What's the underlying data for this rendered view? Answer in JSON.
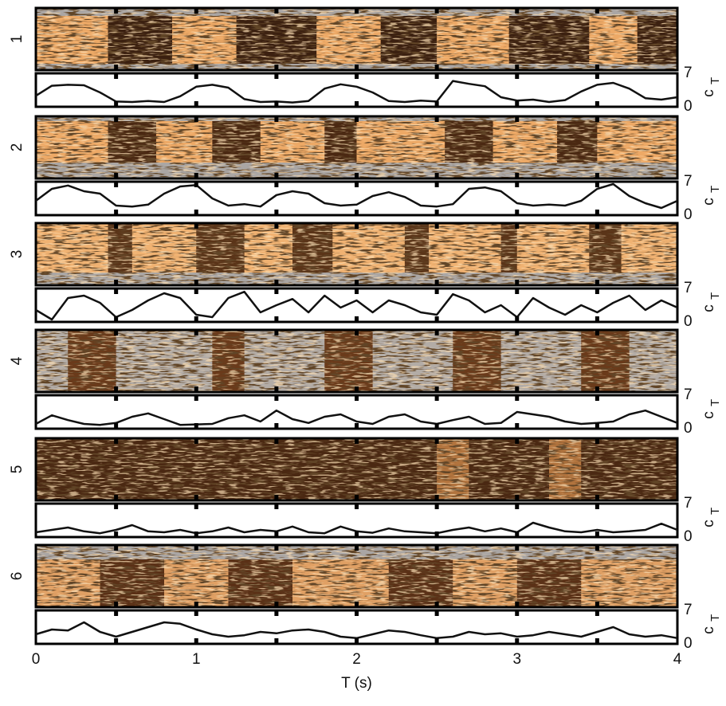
{
  "chart_data": [
    {
      "type": "line",
      "label": "1",
      "xlim": [
        0,
        4
      ],
      "ylim": [
        0,
        7
      ],
      "yticks": [
        0,
        7
      ],
      "ylabel": "c",
      "ylabel_sub": "T",
      "minor_xticks": [
        0.5,
        1,
        1.5,
        2,
        2.5,
        3,
        3.5
      ],
      "x": [
        0,
        0.1,
        0.2,
        0.3,
        0.4,
        0.5,
        0.6,
        0.7,
        0.8,
        0.9,
        1,
        1.1,
        1.2,
        1.3,
        1.4,
        1.5,
        1.6,
        1.7,
        1.8,
        1.9,
        2,
        2.1,
        2.2,
        2.3,
        2.4,
        2.5,
        2.6,
        2.7,
        2.8,
        2.9,
        3,
        3.1,
        3.2,
        3.3,
        3.4,
        3.5,
        3.6,
        3.7,
        3.8,
        3.9,
        4
      ],
      "values": [
        2.3,
        4.4,
        4.6,
        4.5,
        3.0,
        1.1,
        1.0,
        1.2,
        1.0,
        2.2,
        4.2,
        4.6,
        4.0,
        1.6,
        1.0,
        1.1,
        0.9,
        1.2,
        3.8,
        4.7,
        4.2,
        3.0,
        1.2,
        1.0,
        1.3,
        1.1,
        5.4,
        4.8,
        4.3,
        2.0,
        1.3,
        1.5,
        1.0,
        1.4,
        3.2,
        4.6,
        5.0,
        3.8,
        1.8,
        1.5,
        2.0
      ]
    },
    {
      "type": "line",
      "label": "2",
      "xlim": [
        0,
        4
      ],
      "ylim": [
        0,
        7
      ],
      "yticks": [
        0,
        7
      ],
      "ylabel": "c",
      "ylabel_sub": "T",
      "minor_xticks": [
        0.5,
        1,
        1.5,
        2,
        2.5,
        3,
        3.5
      ],
      "x": [
        0,
        0.1,
        0.2,
        0.3,
        0.4,
        0.5,
        0.6,
        0.7,
        0.8,
        0.9,
        1,
        1.1,
        1.2,
        1.3,
        1.4,
        1.5,
        1.6,
        1.7,
        1.8,
        1.9,
        2,
        2.1,
        2.2,
        2.3,
        2.4,
        2.5,
        2.6,
        2.7,
        2.8,
        2.9,
        3,
        3.1,
        3.2,
        3.3,
        3.4,
        3.5,
        3.6,
        3.7,
        3.8,
        3.9,
        4
      ],
      "values": [
        3.0,
        5.5,
        6.2,
        5.0,
        4.5,
        2.0,
        1.8,
        2.2,
        4.5,
        6.0,
        6.3,
        3.5,
        2.0,
        2.3,
        1.8,
        4.2,
        5.0,
        4.5,
        2.5,
        2.0,
        2.2,
        4.0,
        4.8,
        3.8,
        2.0,
        1.8,
        2.3,
        5.5,
        5.8,
        5.0,
        2.5,
        2.0,
        2.2,
        2.0,
        3.0,
        5.5,
        6.5,
        4.0,
        2.5,
        1.5,
        3.0
      ]
    },
    {
      "type": "line",
      "label": "3",
      "xlim": [
        0,
        4
      ],
      "ylim": [
        0,
        7
      ],
      "yticks": [
        0,
        7
      ],
      "ylabel": "c",
      "ylabel_sub": "T",
      "minor_xticks": [
        0.5,
        1,
        1.5,
        2,
        2.5,
        3,
        3.5
      ],
      "x": [
        0,
        0.1,
        0.2,
        0.3,
        0.4,
        0.5,
        0.6,
        0.7,
        0.8,
        0.9,
        1,
        1.1,
        1.2,
        1.3,
        1.4,
        1.5,
        1.6,
        1.7,
        1.8,
        1.9,
        2,
        2.1,
        2.2,
        2.3,
        2.4,
        2.5,
        2.6,
        2.7,
        2.8,
        2.9,
        3,
        3.1,
        3.2,
        3.3,
        3.4,
        3.5,
        3.6,
        3.7,
        3.8,
        3.9,
        4
      ],
      "values": [
        2.5,
        0.5,
        5.0,
        5.5,
        4.0,
        1.0,
        2.5,
        4.5,
        6.0,
        5.0,
        1.5,
        1.0,
        5.0,
        6.3,
        2.0,
        3.5,
        4.8,
        2.0,
        5.5,
        3.0,
        4.5,
        2.0,
        4.5,
        3.5,
        2.0,
        1.5,
        5.8,
        4.5,
        2.0,
        3.5,
        1.0,
        5.0,
        3.0,
        1.5,
        3.5,
        2.0,
        4.0,
        5.5,
        2.5,
        4.5,
        3.0
      ]
    },
    {
      "type": "line",
      "label": "4",
      "xlim": [
        0,
        4
      ],
      "ylim": [
        0,
        7
      ],
      "yticks": [
        0,
        7
      ],
      "ylabel": "c",
      "ylabel_sub": "T",
      "minor_xticks": [
        0.5,
        1,
        1.5,
        2,
        2.5,
        3,
        3.5
      ],
      "x": [
        0,
        0.1,
        0.2,
        0.3,
        0.4,
        0.5,
        0.6,
        0.7,
        0.8,
        0.9,
        1,
        1.1,
        1.2,
        1.3,
        1.4,
        1.5,
        1.6,
        1.7,
        1.8,
        1.9,
        2,
        2.1,
        2.2,
        2.3,
        2.4,
        2.5,
        2.6,
        2.7,
        2.8,
        2.9,
        3,
        3.1,
        3.2,
        3.3,
        3.4,
        3.5,
        3.6,
        3.7,
        3.8,
        3.9,
        4
      ],
      "values": [
        1.0,
        2.8,
        1.8,
        1.0,
        0.8,
        1.2,
        2.5,
        3.2,
        2.0,
        0.8,
        0.9,
        1.0,
        2.2,
        2.8,
        1.5,
        3.8,
        2.0,
        1.2,
        2.5,
        3.0,
        1.5,
        1.0,
        2.5,
        3.0,
        1.5,
        1.0,
        1.8,
        2.5,
        1.0,
        1.2,
        3.5,
        3.0,
        2.5,
        1.5,
        1.0,
        1.2,
        1.5,
        3.0,
        3.8,
        2.5,
        1.2
      ]
    },
    {
      "type": "line",
      "label": "5",
      "xlim": [
        0,
        4
      ],
      "ylim": [
        0,
        7
      ],
      "yticks": [
        0,
        7
      ],
      "ylabel": "c",
      "ylabel_sub": "T",
      "minor_xticks": [
        0.5,
        1,
        1.5,
        2,
        2.5,
        3,
        3.5
      ],
      "x": [
        0,
        0.1,
        0.2,
        0.3,
        0.4,
        0.5,
        0.6,
        0.7,
        0.8,
        0.9,
        1,
        1.1,
        1.2,
        1.3,
        1.4,
        1.5,
        1.6,
        1.7,
        1.8,
        1.9,
        2,
        2.1,
        2.2,
        2.3,
        2.4,
        2.5,
        2.6,
        2.7,
        2.8,
        2.9,
        3,
        3.1,
        3.2,
        3.3,
        3.4,
        3.5,
        3.6,
        3.7,
        3.8,
        3.9,
        4
      ],
      "values": [
        1.0,
        1.5,
        2.0,
        1.2,
        0.8,
        1.5,
        2.5,
        1.2,
        1.0,
        1.5,
        0.8,
        1.2,
        2.0,
        1.0,
        1.5,
        1.2,
        2.2,
        1.0,
        0.8,
        2.2,
        1.2,
        0.9,
        1.8,
        1.2,
        1.0,
        0.8,
        1.5,
        2.0,
        1.2,
        1.8,
        1.0,
        3.0,
        2.0,
        1.2,
        1.0,
        1.5,
        1.0,
        1.2,
        1.5,
        2.8,
        1.5
      ]
    },
    {
      "type": "line",
      "label": "6",
      "xlim": [
        0,
        4
      ],
      "ylim": [
        0,
        7
      ],
      "yticks": [
        0,
        7
      ],
      "ylabel": "c",
      "ylabel_sub": "T",
      "minor_xticks": [
        0.5,
        1,
        1.5,
        2,
        2.5,
        3,
        3.5
      ],
      "xticks": [
        0,
        1,
        2,
        3,
        4
      ],
      "xlabel": "T (s)",
      "x": [
        0,
        0.1,
        0.2,
        0.3,
        0.4,
        0.5,
        0.6,
        0.7,
        0.8,
        0.9,
        1,
        1.1,
        1.2,
        1.3,
        1.4,
        1.5,
        1.6,
        1.7,
        1.8,
        1.9,
        2,
        2.1,
        2.2,
        2.3,
        2.4,
        2.5,
        2.6,
        2.7,
        2.8,
        2.9,
        3,
        3.1,
        3.2,
        3.3,
        3.4,
        3.5,
        3.6,
        3.7,
        3.8,
        3.9,
        4
      ],
      "values": [
        2.0,
        3.0,
        2.8,
        4.5,
        2.5,
        1.5,
        2.5,
        3.5,
        4.5,
        4.2,
        3.0,
        2.0,
        1.5,
        1.8,
        2.5,
        2.2,
        2.8,
        3.0,
        2.5,
        1.5,
        1.2,
        2.0,
        2.8,
        2.5,
        1.8,
        1.2,
        1.5,
        2.5,
        2.0,
        2.2,
        1.5,
        1.8,
        2.5,
        2.0,
        1.5,
        2.5,
        3.5,
        2.0,
        1.5,
        1.8,
        1.2
      ]
    }
  ]
}
